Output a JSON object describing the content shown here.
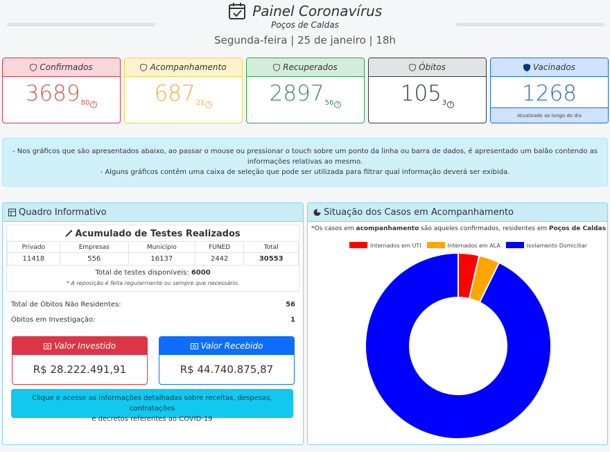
{
  "header": {
    "title": "Painel Coronavírus",
    "subtitle": "Poços de Caldas",
    "date": "Segunda-feira | 25 de janeiro | 18h"
  },
  "cards": [
    {
      "label": "Confirmados",
      "value": "3689",
      "delta": "80",
      "color": "#d9534f",
      "bg": "#f8d7da",
      "border": "#dc3545"
    },
    {
      "label": "Acompanhamento",
      "value": "687",
      "delta": "21",
      "color": "#f0ad4e",
      "bg": "#fff3cd",
      "border": "#f5d142"
    },
    {
      "label": "Recuperados",
      "value": "2897",
      "delta": "56",
      "color": "#3c8a5a",
      "bg": "#d4edda",
      "border": "#28a745"
    },
    {
      "label": "Óbitos",
      "value": "105",
      "delta": "3",
      "color": "#343a40",
      "bg": "#e2e3e5",
      "border": "#343a40"
    },
    {
      "label": "Vacinados",
      "value": "1268",
      "color": "#2a6ebd",
      "bg": "#cfe2ff",
      "border": "#0d6efd",
      "footer": "Atualizado ao longo do dia"
    }
  ],
  "info": {
    "line1": "- Nos gráficos que são apresentados abaixo, ao passar o mouse ou pressionar o touch sobre um ponto da linha ou barra de dados, é apresentado um balão contendo as",
    "line2": "informações relativas ao mesmo.",
    "line3": "- Alguns gráficos contêm uma caixa de seleção que pode ser utilizada para filtrar qual informação deverá ser exibida."
  },
  "quadro": {
    "title": "Quadro Informativo",
    "tests_title": "Acumulado de Testes Realizados",
    "columns": [
      "Privado",
      "Empresas",
      "Município",
      "FUNED",
      "Total"
    ],
    "values": [
      "11418",
      "556",
      "16137",
      "2442",
      "30553"
    ],
    "available_label": "Total de testes disponíveis:",
    "available_value": "6000",
    "note": "* A reposição é feita regularmente ou sempre que necessário.",
    "nonresident_label": "Total de Óbitos Não Residentes:",
    "nonresident_value": "56",
    "investigation_label": "Óbitos em Investigação:",
    "investigation_value": "1",
    "invested_label": "Valor Investido",
    "invested_value": "R$ 28.222.491,91",
    "received_label": "Valor Recebido",
    "received_value": "R$ 44.740.875,87",
    "cta_line1": "Clique e acesse as informações detalhadas sobre receitas, despesas, contratações",
    "cta_line2": "e decretos referentes ao COVID-19"
  },
  "situacao": {
    "title": "Situação dos Casos em Acompanhamento",
    "note_prefix": "*Os casos em ",
    "note_bold1": "acompanhamento",
    "note_mid": " são aqueles confirmados, residentes em ",
    "note_bold2": "Poços de Caldas"
  },
  "chart_data": {
    "type": "pie",
    "categories": [
      "Internados em UTI",
      "Internados em ALA",
      "Isolamento Domiciliar"
    ],
    "values": [
      25,
      25,
      637
    ],
    "colors": [
      "#ff0000",
      "#ffa500",
      "#0000ff"
    ],
    "legend": "top"
  }
}
